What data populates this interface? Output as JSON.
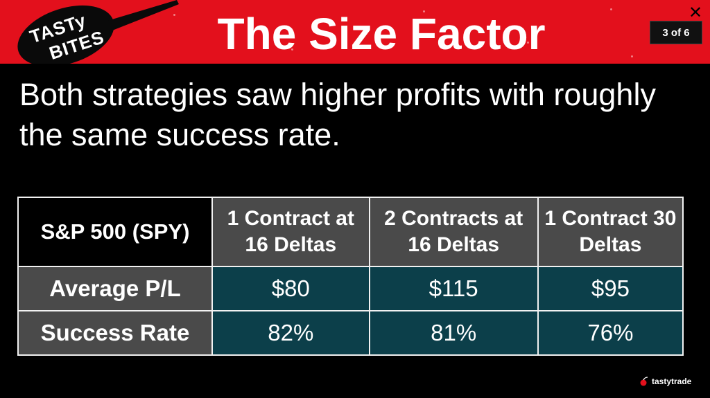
{
  "header": {
    "logo_line1": "TASTy",
    "logo_line2": "BITES",
    "title": "The Size Factor",
    "page_indicator": "3 of 6",
    "close_symbol": "✕"
  },
  "subtitle": "Both strategies saw higher profits with roughly the same success rate.",
  "table": {
    "corner": "S&P 500 (SPY)",
    "columns": [
      "1 Contract at 16 Deltas",
      "2 Contracts at 16 Deltas",
      "1 Contract 30 Deltas"
    ],
    "rows": [
      {
        "label": "Average P/L",
        "values": [
          "$80",
          "$115",
          "$95"
        ]
      },
      {
        "label": "Success Rate",
        "values": [
          "82%",
          "81%",
          "76%"
        ]
      }
    ]
  },
  "footer": {
    "brand": "tastytrade"
  },
  "colors": {
    "header_red": "#e3101c",
    "cell_teal": "#0c3f4a",
    "header_gray": "#4a4a4a"
  }
}
